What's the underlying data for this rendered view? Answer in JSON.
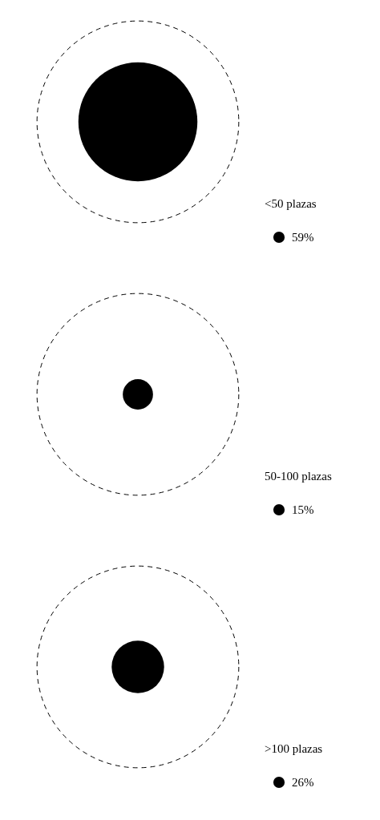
{
  "chart_data": {
    "type": "other",
    "categories": [
      "<50 plazas",
      "50-100 plazas",
      ">100 plazas"
    ],
    "values": [
      59,
      15,
      26
    ],
    "value_labels": [
      "59%",
      "15%",
      "26%"
    ],
    "colors": [
      "#000000",
      "#000000",
      "#000000"
    ]
  }
}
